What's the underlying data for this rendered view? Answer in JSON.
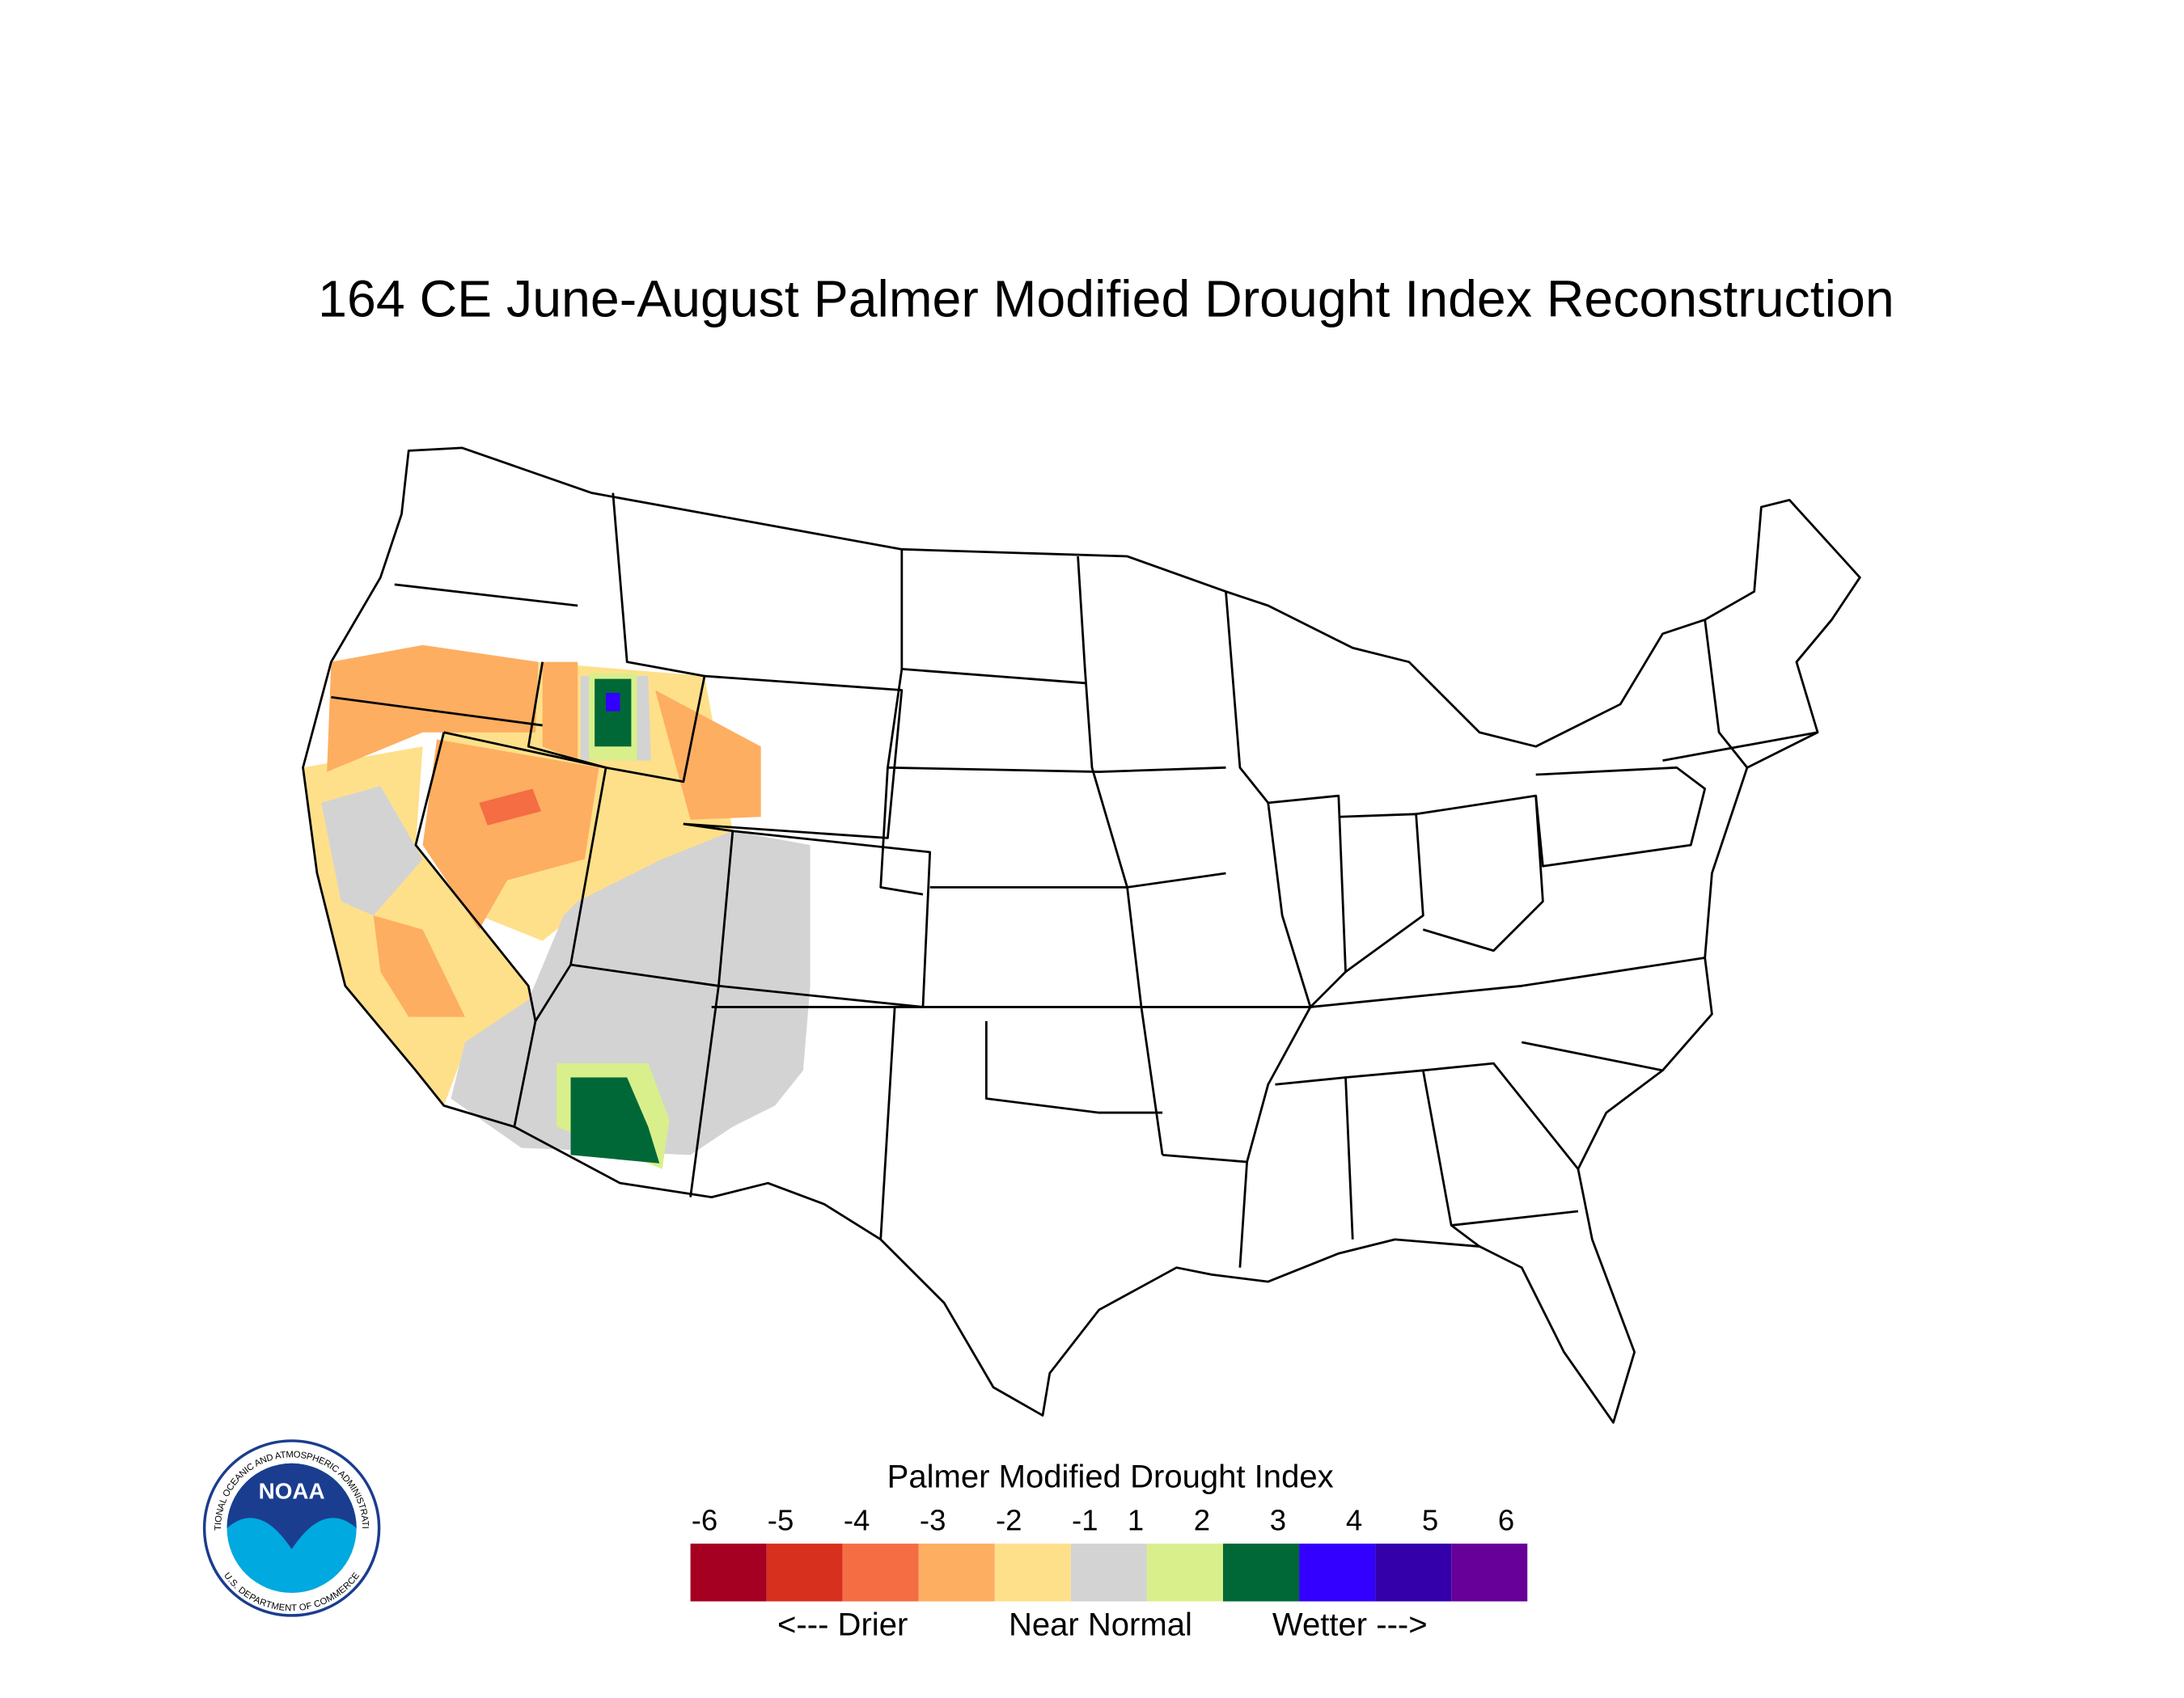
{
  "title": "164 CE  June-August  Palmer Modified Drought Index Reconstruction",
  "legend": {
    "title": "Palmer Modified Drought Index",
    "ticks": [
      -6,
      -5,
      -4,
      -3,
      -2,
      -1,
      1,
      2,
      3,
      4,
      5,
      6
    ],
    "classes": [
      {
        "color": "#a50021"
      },
      {
        "color": "#d7301f"
      },
      {
        "color": "#f46d43"
      },
      {
        "color": "#fdae61"
      },
      {
        "color": "#fee08b"
      },
      {
        "color": "#d3d3d3"
      },
      {
        "color": "#d9ef8b"
      },
      {
        "color": "#006837"
      },
      {
        "color": "#3300ff"
      },
      {
        "color": "#3300aa"
      },
      {
        "color": "#660099"
      }
    ],
    "labels": [
      "<--- Drier",
      "Near Normal",
      "Wetter --->"
    ]
  },
  "logo": {
    "text": "NOAA",
    "upper_ring": "NATIONAL OCEANIC AND ATMOSPHERIC ADMINISTRATION",
    "lower_ring": "U.S. DEPARTMENT OF COMMERCE"
  }
}
